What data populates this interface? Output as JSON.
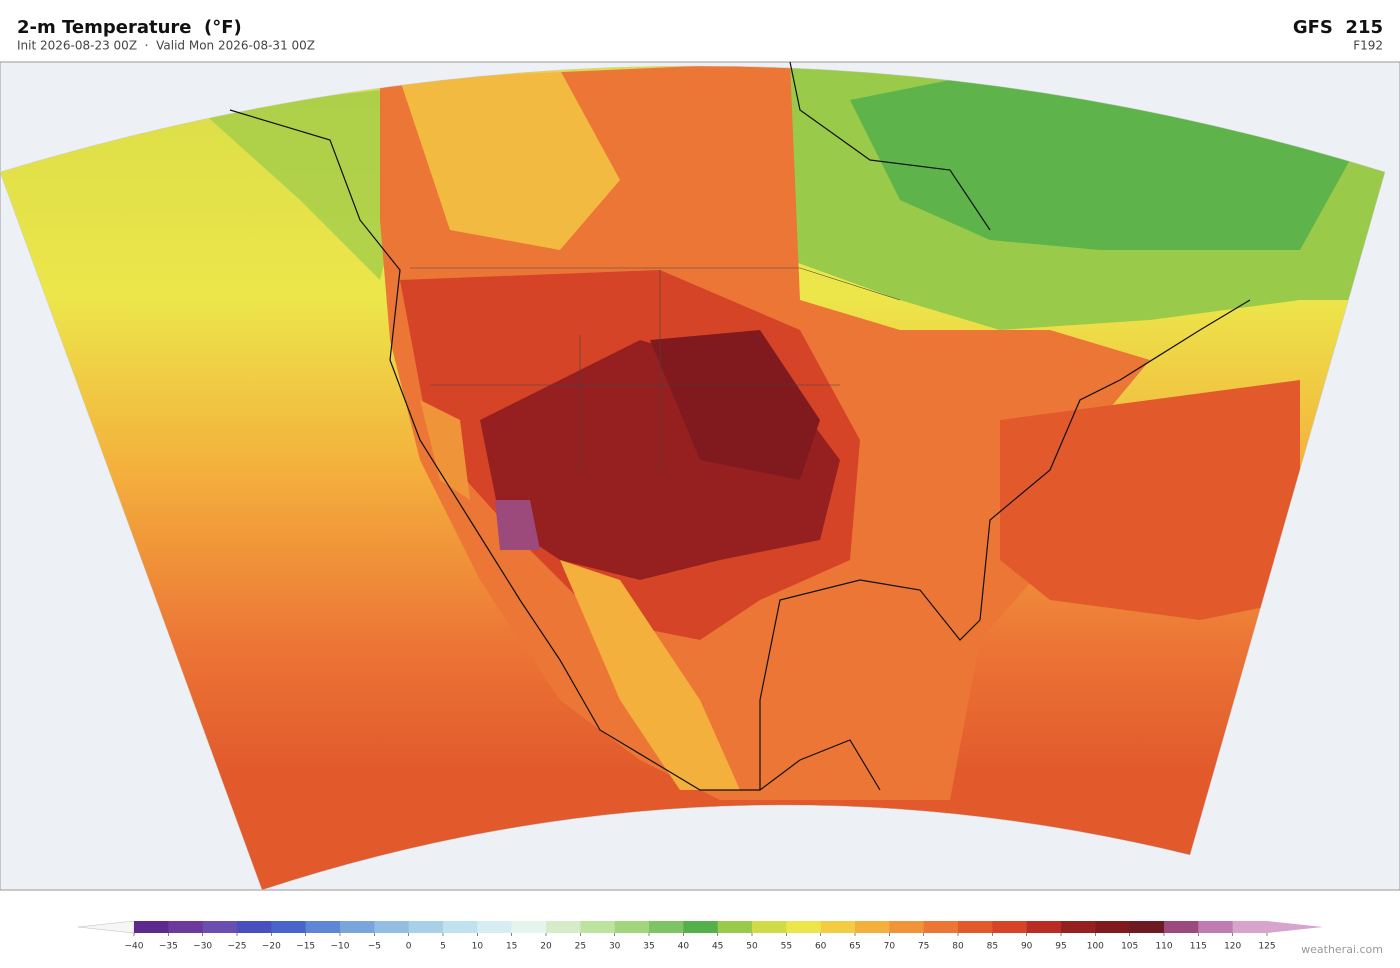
{
  "header": {
    "title": "2-m Temperature  (°F)",
    "subtitle": "Init 2026-08-23 00Z  ·  Valid Mon 2026-08-31 00Z",
    "model": "GFS  215",
    "forecast_hour": "F192"
  },
  "colorbar": {
    "ticks": [
      {
        "value": -40,
        "label": "−40"
      },
      {
        "value": -35,
        "label": "−35"
      },
      {
        "value": -30,
        "label": "−30"
      },
      {
        "value": -25,
        "label": "−25"
      },
      {
        "value": -20,
        "label": "−20"
      },
      {
        "value": -15,
        "label": "−15"
      },
      {
        "value": -10,
        "label": "−10"
      },
      {
        "value": -5,
        "label": "−5"
      },
      0,
      5,
      10,
      15,
      20,
      25,
      30,
      35,
      40,
      45,
      50,
      55,
      60,
      65,
      70,
      75,
      80,
      85,
      90,
      95,
      100,
      105,
      110,
      115,
      120,
      125
    ],
    "colors": [
      "#5b2a8c",
      "#6b3a9c",
      "#6a4fb0",
      "#4a4fc0",
      "#4a64cc",
      "#5f86d4",
      "#7aa4dc",
      "#93bde2",
      "#a8d0e8",
      "#c0e2ef",
      "#d6eef2",
      "#e6f4ee",
      "#d6ecc8",
      "#bee3a0",
      "#a2d67e",
      "#7ec466",
      "#54b04a",
      "#9aca4a",
      "#cfdc48",
      "#ece64a",
      "#f4cc44",
      "#f4b03c",
      "#f0943a",
      "#ec7636",
      "#e25a2c",
      "#d64428",
      "#b82c24",
      "#962020",
      "#801a1e",
      "#6e1a22",
      "#9c4a7c",
      "#c07cb0",
      "#d8a4cc"
    ],
    "under_color": "#f6f6f6",
    "over_color": "#d8a4cc"
  },
  "watermark": "weatherai.com"
}
